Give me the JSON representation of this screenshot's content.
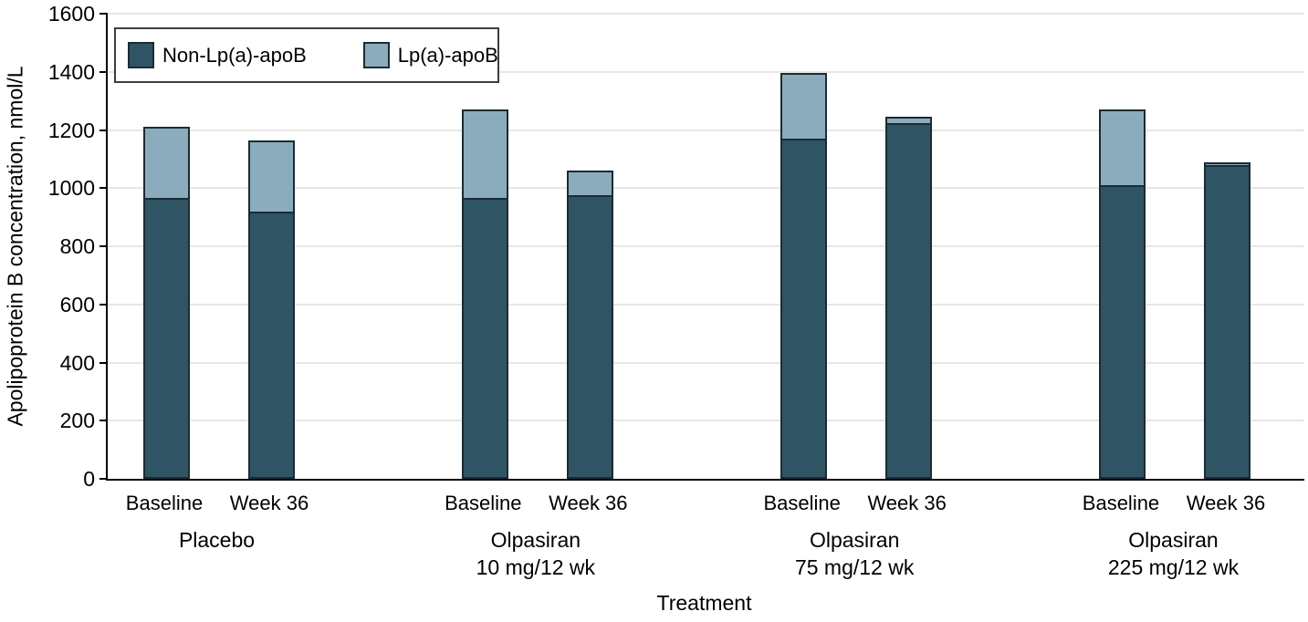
{
  "figure": {
    "kind": "stacked bar figure",
    "xlabel": "Treatment",
    "ylabel": "Apolipoprotein B concentration, nmol/L"
  },
  "chart_data": {
    "type": "bar",
    "stacked": true,
    "title": "",
    "xlabel": "Treatment",
    "ylabel": "Apolipoprotein B concentration, nmol/L",
    "ylim": [
      0,
      1600
    ],
    "yticks": [
      0,
      200,
      400,
      600,
      800,
      1000,
      1200,
      1400,
      1600
    ],
    "grid": true,
    "legend_position": "top-left",
    "colors": {
      "non_lpa_apob": "#2F5564",
      "lpa_apob": "#8BACBC",
      "bar_border": "#1C2B33",
      "gridline": "#E6E6E6",
      "axis": "#000000"
    },
    "legend": [
      {
        "label": "Non-Lp(a)-apoB",
        "color": "#2F5564"
      },
      {
        "label": "Lp(a)-apoB",
        "color": "#8BACBC"
      }
    ],
    "groups": [
      {
        "label_line1": "Placebo",
        "label_line2": "",
        "bars": [
          {
            "x_label": "Baseline",
            "non_lpa_apob": 965,
            "lpa_apob": 245,
            "total": 1210
          },
          {
            "x_label": "Week 36",
            "non_lpa_apob": 920,
            "lpa_apob": 245,
            "total": 1165
          }
        ]
      },
      {
        "label_line1": "Olpasiran",
        "label_line2": "10 mg/12 wk",
        "bars": [
          {
            "x_label": "Baseline",
            "non_lpa_apob": 965,
            "lpa_apob": 305,
            "total": 1270
          },
          {
            "x_label": "Week 36",
            "non_lpa_apob": 975,
            "lpa_apob": 85,
            "total": 1060
          }
        ]
      },
      {
        "label_line1": "Olpasiran",
        "label_line2": "75 mg/12 wk",
        "bars": [
          {
            "x_label": "Baseline",
            "non_lpa_apob": 1170,
            "lpa_apob": 225,
            "total": 1395
          },
          {
            "x_label": "Week 36",
            "non_lpa_apob": 1225,
            "lpa_apob": 20,
            "total": 1245
          }
        ]
      },
      {
        "label_line1": "Olpasiran",
        "label_line2": "225 mg/12 wk",
        "bars": [
          {
            "x_label": "Baseline",
            "non_lpa_apob": 1010,
            "lpa_apob": 260,
            "total": 1270
          },
          {
            "x_label": "Week 36",
            "non_lpa_apob": 1080,
            "lpa_apob": 10,
            "total": 1090
          }
        ]
      }
    ]
  }
}
